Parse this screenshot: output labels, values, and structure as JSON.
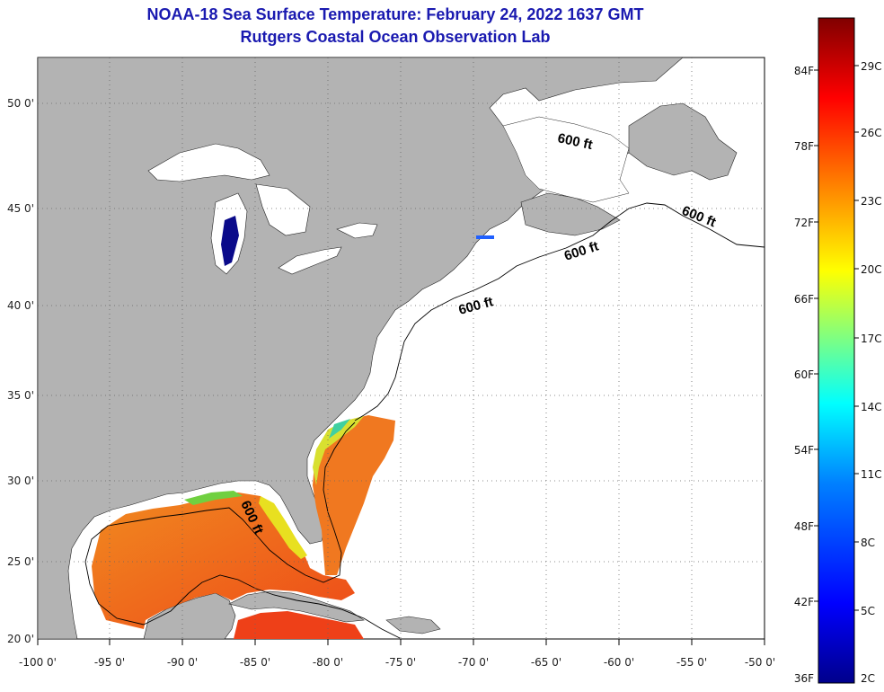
{
  "header": {
    "title_line_1": "NOAA-18 Sea Surface Temperature:  February 24, 2022 1637 GMT",
    "title_line_2": "Rutgers Coastal Ocean Observation Lab"
  },
  "map": {
    "lat_labels": [
      "50 0'",
      "45 0'",
      "40 0'",
      "35 0'",
      "30 0'",
      "25 0'",
      "20 0'"
    ],
    "lon_labels": [
      "-100 0'",
      "-95 0'",
      "-90 0'",
      "-85 0'",
      "-80 0'",
      "-75 0'",
      "-70 0'",
      "-65 0'",
      "-60 0'",
      "-55 0'",
      "-50 0'"
    ],
    "contour_labels": [
      "600 ft",
      "600 ft",
      "600 ft",
      "600 ft",
      "600 ft"
    ],
    "colors": {
      "land": "#b3b3b3",
      "ocean_no_data": "#ffffff",
      "grid": "#666666"
    }
  },
  "colorbar": {
    "f_labels": [
      "84F",
      "78F",
      "72F",
      "66F",
      "60F",
      "54F",
      "48F",
      "42F",
      "36F"
    ],
    "c_labels": [
      "29C",
      "26C",
      "23C",
      "20C",
      "17C",
      "14C",
      "11C",
      "8C",
      "5C",
      "2C"
    ],
    "colors": [
      "#00008b",
      "#0000ff",
      "#0080ff",
      "#00ffff",
      "#80ff80",
      "#ffff00",
      "#ff8000",
      "#ff0000",
      "#800000"
    ]
  }
}
